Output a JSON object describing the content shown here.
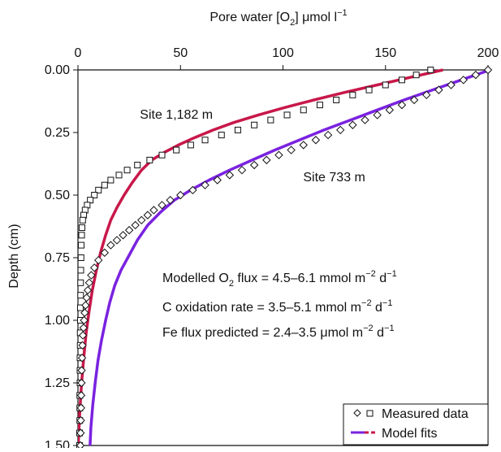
{
  "chart_data": {
    "type": "scatter",
    "title": "",
    "xlabel": "Pore water [O2] μmol l−1",
    "xlabel_parts": [
      "Pore water [O",
      "2",
      "] μmol l",
      "−1"
    ],
    "ylabel": "Depth (cm)",
    "xlim": [
      0,
      200
    ],
    "ylim": [
      0,
      1.5
    ],
    "y_inverted": true,
    "x_axis_position": "top",
    "x_ticks": [
      0,
      50,
      100,
      150,
      200
    ],
    "x_tick_labels": [
      "0",
      "50",
      "100",
      "150",
      "200"
    ],
    "y_ticks": [
      0,
      0.25,
      0.5,
      0.75,
      1.0,
      1.25,
      1.5
    ],
    "y_tick_labels": [
      "0.00",
      "0.25",
      "0.50",
      "0.75",
      "1.00",
      "1.25",
      "1.50"
    ],
    "grid": false,
    "colors": {
      "site_1182_model": "#c8184a",
      "site_733_model": "#7a22e0",
      "markers": "#111111"
    },
    "series": [
      {
        "name": "Site 1,182 m",
        "kind": "measured",
        "marker": "square",
        "points": [
          [
            172,
            0.0
          ],
          [
            165,
            0.02
          ],
          [
            158,
            0.04
          ],
          [
            150,
            0.06
          ],
          [
            142,
            0.08
          ],
          [
            134,
            0.1
          ],
          [
            126,
            0.12
          ],
          [
            118,
            0.14
          ],
          [
            110,
            0.16
          ],
          [
            102,
            0.18
          ],
          [
            94,
            0.2
          ],
          [
            86,
            0.22
          ],
          [
            78,
            0.24
          ],
          [
            70,
            0.26
          ],
          [
            62,
            0.28
          ],
          [
            55,
            0.3
          ],
          [
            48,
            0.32
          ],
          [
            41,
            0.34
          ],
          [
            35,
            0.36
          ],
          [
            29,
            0.38
          ],
          [
            24,
            0.4
          ],
          [
            20,
            0.42
          ],
          [
            16,
            0.44
          ],
          [
            13,
            0.46
          ],
          [
            10,
            0.48
          ],
          [
            8,
            0.5
          ],
          [
            6,
            0.52
          ],
          [
            4.5,
            0.54
          ],
          [
            3.5,
            0.56
          ],
          [
            2.8,
            0.58
          ],
          [
            2.3,
            0.6
          ],
          [
            2.0,
            0.63
          ],
          [
            1.8,
            0.66
          ],
          [
            1.6,
            0.7
          ],
          [
            1.5,
            0.75
          ],
          [
            1.4,
            0.8
          ],
          [
            1.3,
            0.85
          ],
          [
            1.3,
            0.9
          ],
          [
            1.2,
            0.95
          ],
          [
            1.2,
            1.0
          ],
          [
            1.1,
            1.05
          ],
          [
            1.1,
            1.1
          ],
          [
            1.0,
            1.15
          ],
          [
            1.0,
            1.2
          ],
          [
            1.0,
            1.25
          ],
          [
            0.9,
            1.3
          ],
          [
            0.9,
            1.35
          ],
          [
            0.9,
            1.4
          ],
          [
            0.8,
            1.45
          ],
          [
            0.8,
            1.5
          ]
        ]
      },
      {
        "name": "Site 733 m",
        "kind": "measured",
        "marker": "diamond",
        "points": [
          [
            200,
            0.0
          ],
          [
            194,
            0.02
          ],
          [
            188,
            0.04
          ],
          [
            182,
            0.06
          ],
          [
            176,
            0.08
          ],
          [
            170,
            0.1
          ],
          [
            164,
            0.12
          ],
          [
            158,
            0.14
          ],
          [
            152,
            0.16
          ],
          [
            146,
            0.18
          ],
          [
            140,
            0.2
          ],
          [
            134,
            0.22
          ],
          [
            128,
            0.24
          ],
          [
            122,
            0.26
          ],
          [
            116,
            0.28
          ],
          [
            110,
            0.3
          ],
          [
            104,
            0.32
          ],
          [
            98,
            0.34
          ],
          [
            92,
            0.36
          ],
          [
            86,
            0.38
          ],
          [
            80,
            0.4
          ],
          [
            74,
            0.42
          ],
          [
            68,
            0.44
          ],
          [
            62,
            0.46
          ],
          [
            56,
            0.48
          ],
          [
            50,
            0.5
          ],
          [
            45,
            0.52
          ],
          [
            41,
            0.54
          ],
          [
            37,
            0.56
          ],
          [
            34,
            0.58
          ],
          [
            31,
            0.6
          ],
          [
            28,
            0.62
          ],
          [
            25,
            0.64
          ],
          [
            22,
            0.66
          ],
          [
            19,
            0.68
          ],
          [
            16,
            0.7
          ],
          [
            13,
            0.73
          ],
          [
            10,
            0.76
          ],
          [
            8,
            0.79
          ],
          [
            6.5,
            0.82
          ],
          [
            5.5,
            0.85
          ],
          [
            4.8,
            0.88
          ],
          [
            4.2,
            0.91
          ],
          [
            3.7,
            0.94
          ],
          [
            3.3,
            0.97
          ],
          [
            3.0,
            1.0
          ],
          [
            2.7,
            1.03
          ],
          [
            2.4,
            1.06
          ],
          [
            2.2,
            1.1
          ],
          [
            2.0,
            1.15
          ],
          [
            1.8,
            1.2
          ],
          [
            1.7,
            1.25
          ],
          [
            1.6,
            1.3
          ],
          [
            1.5,
            1.35
          ],
          [
            1.4,
            1.4
          ],
          [
            1.3,
            1.45
          ],
          [
            1.2,
            1.5
          ]
        ]
      },
      {
        "name": "Site 1,182 m model",
        "kind": "model",
        "line": true,
        "points": [
          [
            178,
            0.0
          ],
          [
            162,
            0.03
          ],
          [
            146,
            0.06
          ],
          [
            130,
            0.09
          ],
          [
            115,
            0.12
          ],
          [
            101,
            0.15
          ],
          [
            88,
            0.18
          ],
          [
            76,
            0.21
          ],
          [
            66,
            0.24
          ],
          [
            57,
            0.27
          ],
          [
            49,
            0.3
          ],
          [
            42,
            0.33
          ],
          [
            36,
            0.36
          ],
          [
            31,
            0.4
          ],
          [
            26.5,
            0.45
          ],
          [
            22.5,
            0.5
          ],
          [
            19,
            0.55
          ],
          [
            16,
            0.6
          ],
          [
            13.5,
            0.66
          ],
          [
            11,
            0.73
          ],
          [
            9,
            0.8
          ],
          [
            7,
            0.88
          ],
          [
            5.5,
            0.96
          ],
          [
            4,
            1.05
          ],
          [
            2.8,
            1.15
          ],
          [
            1.8,
            1.25
          ],
          [
            1.0,
            1.35
          ],
          [
            0.4,
            1.45
          ],
          [
            0,
            1.52
          ]
        ]
      },
      {
        "name": "Site 733 m model",
        "kind": "model",
        "line": true,
        "points": [
          [
            201,
            0.0
          ],
          [
            187,
            0.04
          ],
          [
            173,
            0.08
          ],
          [
            159,
            0.12
          ],
          [
            146,
            0.16
          ],
          [
            133,
            0.2
          ],
          [
            120,
            0.24
          ],
          [
            108,
            0.28
          ],
          [
            96,
            0.32
          ],
          [
            85,
            0.36
          ],
          [
            74,
            0.4
          ],
          [
            64,
            0.44
          ],
          [
            55,
            0.48
          ],
          [
            47,
            0.52
          ],
          [
            40,
            0.57
          ],
          [
            34,
            0.62
          ],
          [
            29,
            0.68
          ],
          [
            25,
            0.74
          ],
          [
            21,
            0.8
          ],
          [
            18,
            0.86
          ],
          [
            15.5,
            0.93
          ],
          [
            13.5,
            1.0
          ],
          [
            11.5,
            1.08
          ],
          [
            9.8,
            1.16
          ],
          [
            8.4,
            1.25
          ],
          [
            7.2,
            1.34
          ],
          [
            6.3,
            1.43
          ],
          [
            5.8,
            1.52
          ]
        ]
      }
    ],
    "site_labels": [
      {
        "text": "Site 1,182 m",
        "x": 48,
        "y": 0.195
      },
      {
        "text": "Site 733 m",
        "x": 125,
        "y": 0.445
      }
    ],
    "annotations": [
      {
        "text": "Modelled O2 flux  =  4.5–6.1 mmol m−2 d−1",
        "parts": [
          "Modelled O",
          "2",
          " flux  =  4.5–6.1 mmol m",
          "−2",
          " d",
          "−1"
        ]
      },
      {
        "text": "C oxidation rate  =  3.5–5.1 mmol m−2 d−1",
        "parts": [
          "C oxidation rate  =  3.5–5.1 mmol m",
          "−2",
          " d",
          "−1"
        ]
      },
      {
        "text": "Fe flux predicted  =  2.4–3.5 μmol m−2 d−1",
        "parts": [
          "Fe flux predicted  =  2.4–3.5 μmol m",
          "−2",
          " d",
          "−1"
        ]
      }
    ],
    "legend": {
      "placement": "bottom-right",
      "items": [
        {
          "label": "Measured data",
          "symbols": [
            "diamond",
            "square"
          ]
        },
        {
          "label": "Model fits",
          "symbols": [
            "line-purple",
            "line-red"
          ]
        }
      ]
    }
  }
}
